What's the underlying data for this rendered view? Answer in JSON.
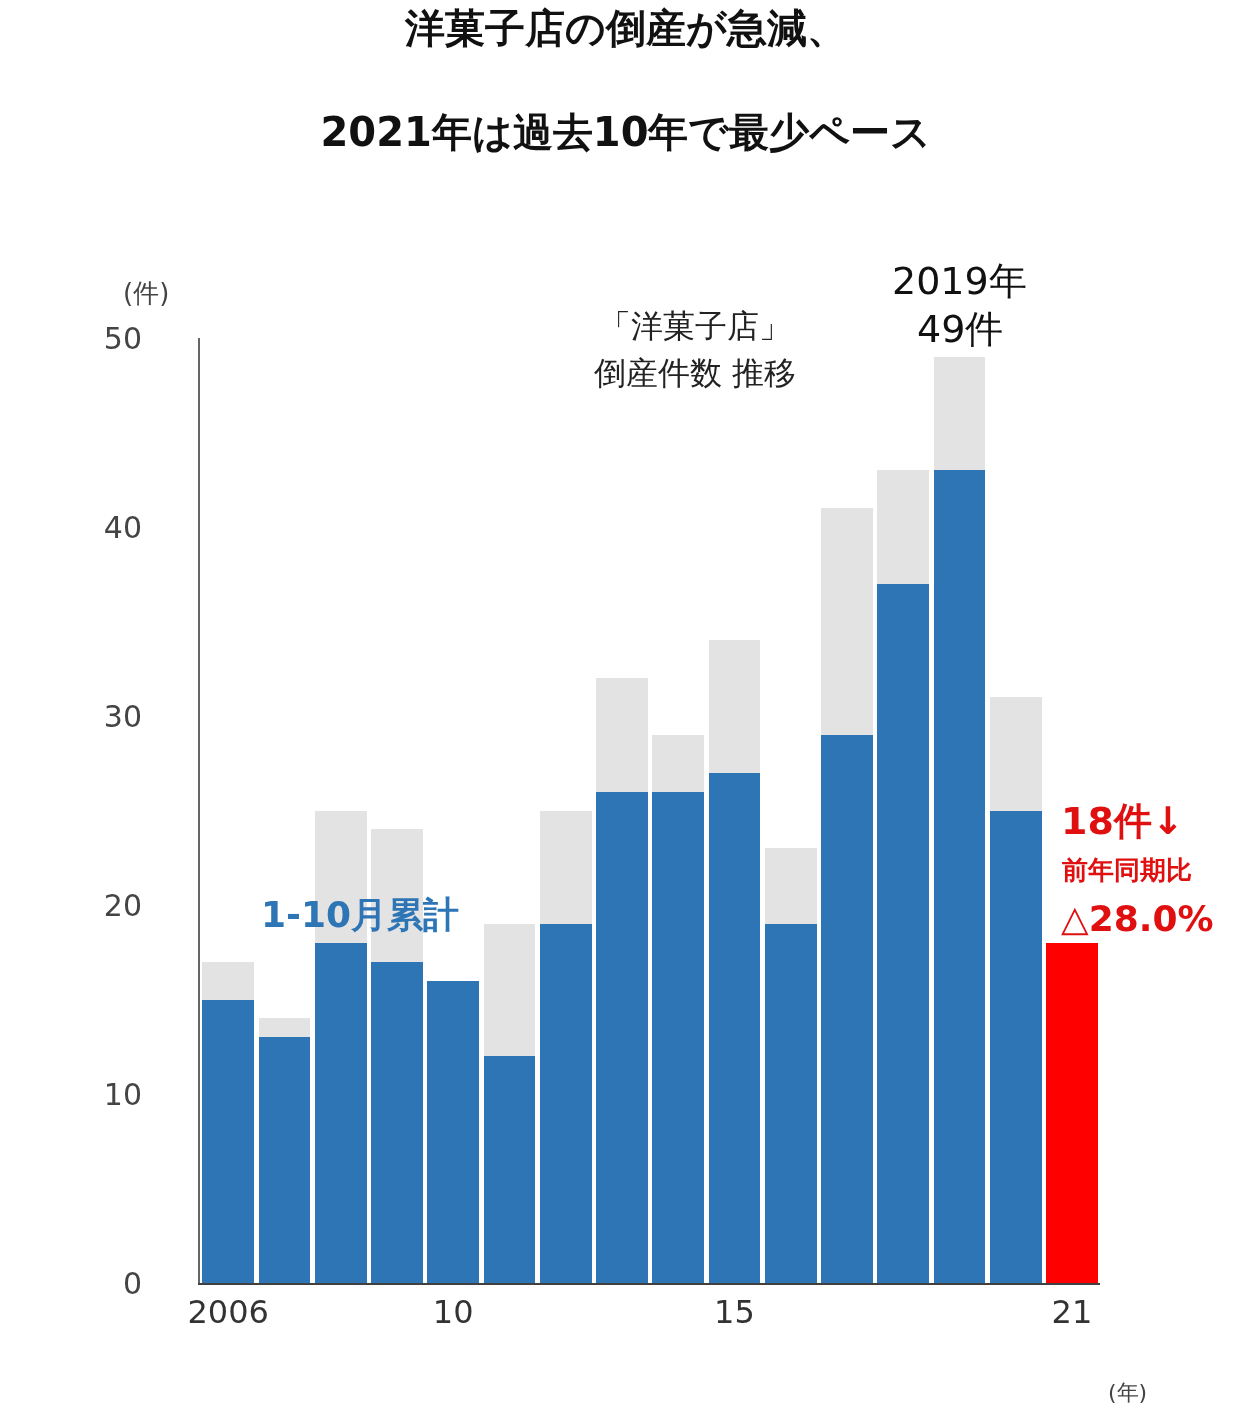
{
  "chart_data": {
    "type": "bar",
    "title": "洋菓子店の倒産が急減、\n2021年は過去10年で最少ペース",
    "stacked": true,
    "legend": false,
    "ylabel": "(件)",
    "xlabel": "(年)",
    "x": [
      2006,
      2007,
      2008,
      2009,
      2010,
      2011,
      2012,
      2013,
      2014,
      2015,
      2016,
      2017,
      2018,
      2019,
      2020,
      2021
    ],
    "series": [
      {
        "colors": [
          "#2e75b6",
          "#2e75b6",
          "#2e75b6",
          "#2e75b6",
          "#2e75b6",
          "#2e75b6",
          "#2e75b6",
          "#2e75b6",
          "#2e75b6",
          "#2e75b6",
          "#2e75b6",
          "#2e75b6",
          "#2e75b6",
          "#2e75b6",
          "#2e75b6",
          "#ff0000"
        ],
        "values": [
          15,
          13,
          18,
          17,
          16,
          12,
          19,
          26,
          26,
          27,
          19,
          29,
          37,
          43,
          25,
          18
        ]
      },
      {
        "color": "#e3e3e3",
        "values": [
          2,
          1,
          7,
          7,
          null,
          7,
          6,
          6,
          3,
          7,
          4,
          12,
          6,
          6,
          6,
          null
        ]
      }
    ],
    "xlim": [
      2005.5,
      2021.5
    ],
    "xticks": [
      {
        "value": 2006,
        "label": "2006"
      },
      {
        "value": 2010,
        "label": "10"
      },
      {
        "value": 2015,
        "label": "15"
      },
      {
        "value": 2021,
        "label": "21"
      }
    ],
    "ylim": [
      0,
      50
    ],
    "yticks": [
      0,
      10,
      20,
      30,
      40,
      50
    ],
    "annotations": [
      "1-10月累計",
      "「洋菓子店」",
      "倒産件数 推移",
      "2019年",
      "49件",
      "18件↓",
      "前年同期比",
      "△28.0%"
    ]
  }
}
